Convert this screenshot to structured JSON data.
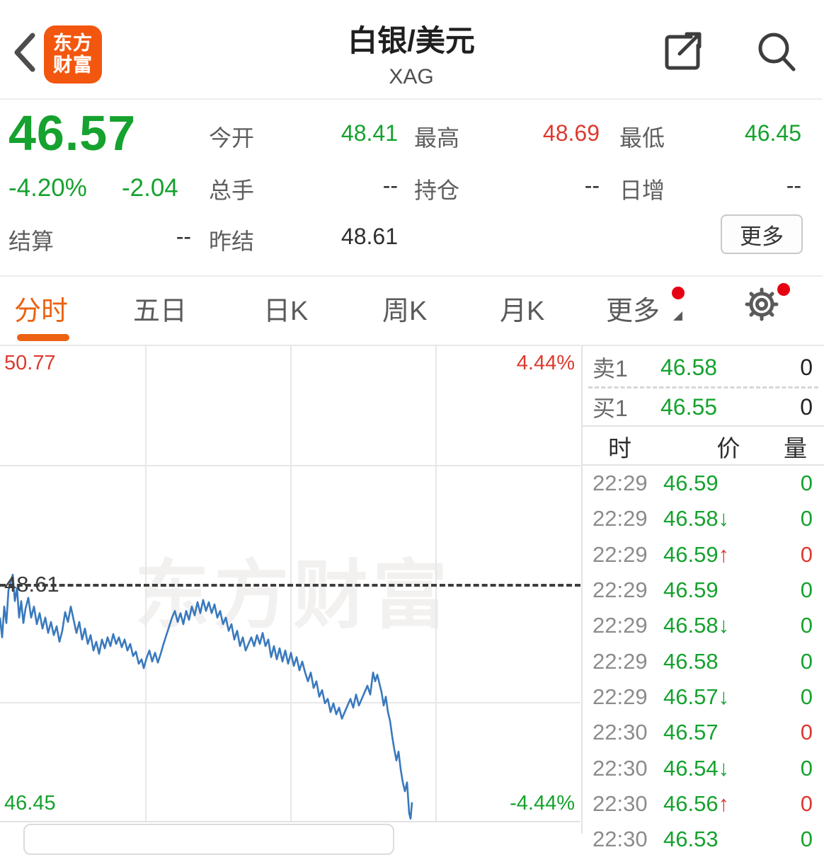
{
  "colors": {
    "green": "#15a22e",
    "red": "#dd3a30",
    "tab_orange": "#ec6212",
    "brand_orange": "#f3560e",
    "badge_red": "#e60012",
    "line_blue": "#3a79bd"
  },
  "header": {
    "back_icon": "chevron-left",
    "logo_line1": "东方",
    "logo_line2": "财富",
    "title": "白银/美元",
    "subtitle": "XAG",
    "share_icon": "share-external",
    "search_icon": "magnifier"
  },
  "quote": {
    "last_price": "46.57",
    "change_percent": "-4.20%",
    "change_value": "-2.04",
    "fields": [
      {
        "label": "今开",
        "value": "48.41",
        "color": "green"
      },
      {
        "label": "最高",
        "value": "48.69",
        "color": "red"
      },
      {
        "label": "最低",
        "value": "46.45",
        "color": "green"
      },
      {
        "label": "总手",
        "value": "--",
        "color": "dark"
      },
      {
        "label": "持仓",
        "value": "--",
        "color": "dark"
      },
      {
        "label": "日增",
        "value": "--",
        "color": "dark"
      },
      {
        "label": "结算",
        "value": "--",
        "color": "dark"
      },
      {
        "label": "昨结",
        "value": "48.61",
        "color": "dark"
      }
    ],
    "more_button": "更多"
  },
  "tabs": [
    {
      "label": "分时",
      "active": true
    },
    {
      "label": "五日",
      "active": false
    },
    {
      "label": "日K",
      "active": false
    },
    {
      "label": "周K",
      "active": false
    },
    {
      "label": "月K",
      "active": false
    },
    {
      "label": "更多",
      "active": false,
      "badge": true,
      "caret": true
    }
  ],
  "settings": {
    "gear_icon": "gear",
    "badge": true
  },
  "chart_data": {
    "type": "line",
    "y_range": [
      46.45,
      50.77
    ],
    "baseline_price": 48.61,
    "grid": {
      "v_fractions": [
        0.25,
        0.5,
        0.75
      ],
      "h_fractions": [
        0.25,
        0.75
      ]
    },
    "labels": {
      "top_left": "50.77",
      "top_right": "4.44%",
      "baseline": "48.61",
      "bottom_left": "46.45",
      "bottom_right": "-4.44%"
    },
    "watermark": "东方财富",
    "series": [
      {
        "name": "price",
        "points": [
          [
            0,
            48.3
          ],
          [
            3,
            48.12
          ],
          [
            6,
            48.4
          ],
          [
            9,
            48.25
          ],
          [
            12,
            48.55
          ],
          [
            15,
            48.62
          ],
          [
            18,
            48.69
          ],
          [
            21,
            48.45
          ],
          [
            24,
            48.57
          ],
          [
            27,
            48.3
          ],
          [
            30,
            48.45
          ],
          [
            33,
            48.25
          ],
          [
            36,
            48.38
          ],
          [
            40,
            48.48
          ],
          [
            44,
            48.3
          ],
          [
            48,
            48.4
          ],
          [
            52,
            48.24
          ],
          [
            56,
            48.34
          ],
          [
            60,
            48.2
          ],
          [
            64,
            48.3
          ],
          [
            68,
            48.16
          ],
          [
            72,
            48.26
          ],
          [
            76,
            48.14
          ],
          [
            80,
            48.22
          ],
          [
            84,
            48.08
          ],
          [
            88,
            48.18
          ],
          [
            92,
            48.35
          ],
          [
            96,
            48.26
          ],
          [
            100,
            48.4
          ],
          [
            104,
            48.28
          ],
          [
            108,
            48.16
          ],
          [
            112,
            48.26
          ],
          [
            116,
            48.1
          ],
          [
            120,
            48.2
          ],
          [
            124,
            48.06
          ],
          [
            128,
            48.14
          ],
          [
            132,
            48.0
          ],
          [
            136,
            48.08
          ],
          [
            140,
            47.97
          ],
          [
            144,
            48.1
          ],
          [
            148,
            48.02
          ],
          [
            152,
            48.12
          ],
          [
            156,
            48.04
          ],
          [
            160,
            48.15
          ],
          [
            164,
            48.06
          ],
          [
            168,
            48.12
          ],
          [
            172,
            48.03
          ],
          [
            176,
            48.1
          ],
          [
            180,
            48.0
          ],
          [
            184,
            48.06
          ],
          [
            188,
            47.95
          ],
          [
            192,
            47.99
          ],
          [
            196,
            47.88
          ],
          [
            200,
            47.92
          ],
          [
            203,
            47.84
          ],
          [
            207,
            47.93
          ],
          [
            211,
            48.0
          ],
          [
            215,
            47.9
          ],
          [
            219,
            47.98
          ],
          [
            223,
            47.89
          ],
          [
            227,
            47.97
          ],
          [
            231,
            48.06
          ],
          [
            235,
            48.14
          ],
          [
            239,
            48.22
          ],
          [
            243,
            48.3
          ],
          [
            247,
            48.36
          ],
          [
            251,
            48.26
          ],
          [
            255,
            48.34
          ],
          [
            259,
            48.24
          ],
          [
            263,
            48.36
          ],
          [
            267,
            48.28
          ],
          [
            271,
            48.4
          ],
          [
            275,
            48.32
          ],
          [
            279,
            48.44
          ],
          [
            283,
            48.34
          ],
          [
            287,
            48.46
          ],
          [
            291,
            48.36
          ],
          [
            295,
            48.44
          ],
          [
            299,
            48.34
          ],
          [
            303,
            48.42
          ],
          [
            307,
            48.3
          ],
          [
            311,
            48.36
          ],
          [
            315,
            48.24
          ],
          [
            319,
            48.3
          ],
          [
            323,
            48.18
          ],
          [
            327,
            48.24
          ],
          [
            331,
            48.1
          ],
          [
            335,
            48.18
          ],
          [
            339,
            48.04
          ],
          [
            343,
            48.12
          ],
          [
            347,
            48.0
          ],
          [
            351,
            48.06
          ],
          [
            355,
            48.12
          ],
          [
            359,
            48.04
          ],
          [
            363,
            48.14
          ],
          [
            367,
            48.06
          ],
          [
            371,
            48.16
          ],
          [
            375,
            48.04
          ],
          [
            379,
            48.1
          ],
          [
            383,
            47.94
          ],
          [
            387,
            48.04
          ],
          [
            391,
            47.92
          ],
          [
            395,
            48.02
          ],
          [
            399,
            47.9
          ],
          [
            403,
            48.0
          ],
          [
            407,
            47.88
          ],
          [
            411,
            47.98
          ],
          [
            415,
            47.86
          ],
          [
            419,
            47.94
          ],
          [
            423,
            47.82
          ],
          [
            427,
            47.9
          ],
          [
            431,
            47.8
          ],
          [
            435,
            47.72
          ],
          [
            439,
            47.8
          ],
          [
            443,
            47.66
          ],
          [
            447,
            47.72
          ],
          [
            451,
            47.58
          ],
          [
            455,
            47.64
          ],
          [
            459,
            47.52
          ],
          [
            463,
            47.56
          ],
          [
            467,
            47.44
          ],
          [
            471,
            47.52
          ],
          [
            475,
            47.42
          ],
          [
            479,
            47.48
          ],
          [
            483,
            47.38
          ],
          [
            487,
            47.44
          ],
          [
            491,
            47.5
          ],
          [
            495,
            47.56
          ],
          [
            499,
            47.48
          ],
          [
            503,
            47.6
          ],
          [
            507,
            47.5
          ],
          [
            511,
            47.56
          ],
          [
            515,
            47.62
          ],
          [
            519,
            47.68
          ],
          [
            523,
            47.6
          ],
          [
            527,
            47.8
          ],
          [
            530,
            47.72
          ],
          [
            533,
            47.78
          ],
          [
            536,
            47.7
          ],
          [
            539,
            47.62
          ],
          [
            542,
            47.5
          ],
          [
            545,
            47.58
          ],
          [
            548,
            47.44
          ],
          [
            551,
            47.36
          ],
          [
            554,
            47.22
          ],
          [
            557,
            47.1
          ],
          [
            560,
            47.0
          ],
          [
            563,
            47.08
          ],
          [
            566,
            46.92
          ],
          [
            569,
            46.8
          ],
          [
            572,
            46.72
          ],
          [
            575,
            46.8
          ],
          [
            578,
            46.52
          ],
          [
            580,
            46.47
          ],
          [
            582,
            46.62
          ]
        ]
      }
    ]
  },
  "order_book": {
    "sell": {
      "label": "卖1",
      "price": "46.58",
      "price_color": "green",
      "qty": "0"
    },
    "buy": {
      "label": "买1",
      "price": "46.55",
      "price_color": "green",
      "qty": "0"
    }
  },
  "tape": {
    "headers": [
      "时",
      "价",
      "量"
    ],
    "rows": [
      {
        "time": "22:29",
        "price": "46.59",
        "arrow": "",
        "arrow_color": "",
        "price_color": "green",
        "qty": "0",
        "qty_color": "green"
      },
      {
        "time": "22:29",
        "price": "46.58",
        "arrow": "↓",
        "arrow_color": "green",
        "price_color": "green",
        "qty": "0",
        "qty_color": "green"
      },
      {
        "time": "22:29",
        "price": "46.59",
        "arrow": "↑",
        "arrow_color": "red",
        "price_color": "green",
        "qty": "0",
        "qty_color": "red"
      },
      {
        "time": "22:29",
        "price": "46.59",
        "arrow": "",
        "arrow_color": "",
        "price_color": "green",
        "qty": "0",
        "qty_color": "green"
      },
      {
        "time": "22:29",
        "price": "46.58",
        "arrow": "↓",
        "arrow_color": "green",
        "price_color": "green",
        "qty": "0",
        "qty_color": "green"
      },
      {
        "time": "22:29",
        "price": "46.58",
        "arrow": "",
        "arrow_color": "",
        "price_color": "green",
        "qty": "0",
        "qty_color": "green"
      },
      {
        "time": "22:29",
        "price": "46.57",
        "arrow": "↓",
        "arrow_color": "green",
        "price_color": "green",
        "qty": "0",
        "qty_color": "green"
      },
      {
        "time": "22:30",
        "price": "46.57",
        "arrow": "",
        "arrow_color": "",
        "price_color": "green",
        "qty": "0",
        "qty_color": "red"
      },
      {
        "time": "22:30",
        "price": "46.54",
        "arrow": "↓",
        "arrow_color": "green",
        "price_color": "green",
        "qty": "0",
        "qty_color": "green"
      },
      {
        "time": "22:30",
        "price": "46.56",
        "arrow": "↑",
        "arrow_color": "red",
        "price_color": "green",
        "qty": "0",
        "qty_color": "red"
      },
      {
        "time": "22:30",
        "price": "46.53",
        "arrow": "",
        "arrow_color": "",
        "price_color": "green",
        "qty": "0",
        "qty_color": "green"
      }
    ]
  }
}
